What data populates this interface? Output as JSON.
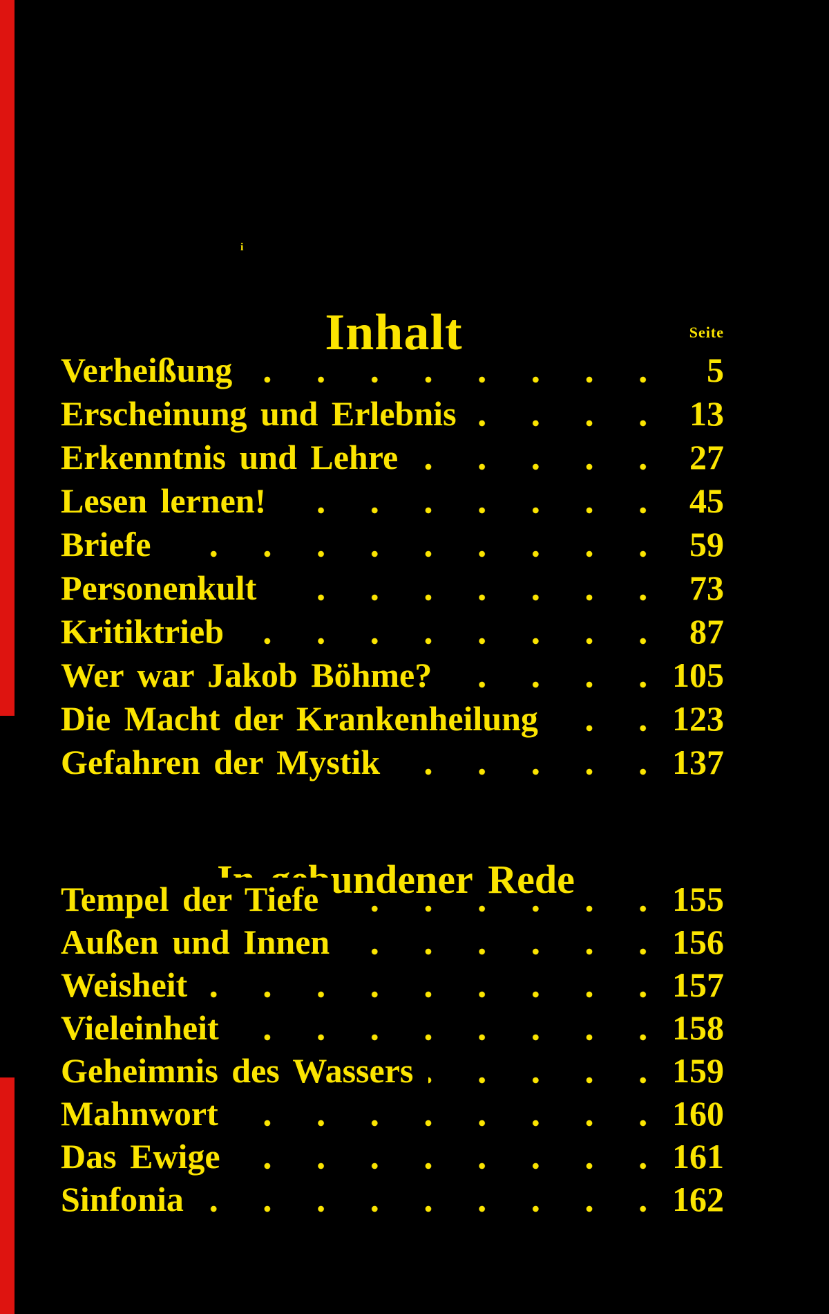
{
  "page": {
    "title": "Inhalt",
    "column_header": "Seite",
    "stray_mark": "i"
  },
  "sections": [
    {
      "heading": "",
      "entries": [
        {
          "title": "Verheißung",
          "page": "5"
        },
        {
          "title": "Erscheinung und Erlebnis",
          "page": "13"
        },
        {
          "title": "Erkenntnis und Lehre",
          "page": "27"
        },
        {
          "title": "Lesen lernen!",
          "page": "45"
        },
        {
          "title": "Briefe",
          "page": "59"
        },
        {
          "title": "Personenkult",
          "page": "73"
        },
        {
          "title": "Kritiktrieb",
          "page": "87"
        },
        {
          "title": "Wer war Jakob Böhme?",
          "page": "105"
        },
        {
          "title": "Die Macht der Krankenheilung",
          "page": "123"
        },
        {
          "title": "Gefahren der Mystik",
          "page": "137"
        }
      ]
    },
    {
      "heading": "In gebundener Rede",
      "entries": [
        {
          "title": "Tempel der Tiefe",
          "page": "155"
        },
        {
          "title": "Außen und Innen",
          "page": "156"
        },
        {
          "title": "Weisheit",
          "page": "157"
        },
        {
          "title": "Vieleinheit",
          "page": "158"
        },
        {
          "title": "Geheimnis des Wassers",
          "page": "159"
        },
        {
          "title": "Mahnwort",
          "page": "160"
        },
        {
          "title": "Das Ewige",
          "page": "161"
        },
        {
          "title": "Sinfonia",
          "page": "162"
        }
      ]
    }
  ],
  "colors": {
    "background": "#000000",
    "text_yellow": "#fbe400",
    "edge_red": "#de1410"
  }
}
